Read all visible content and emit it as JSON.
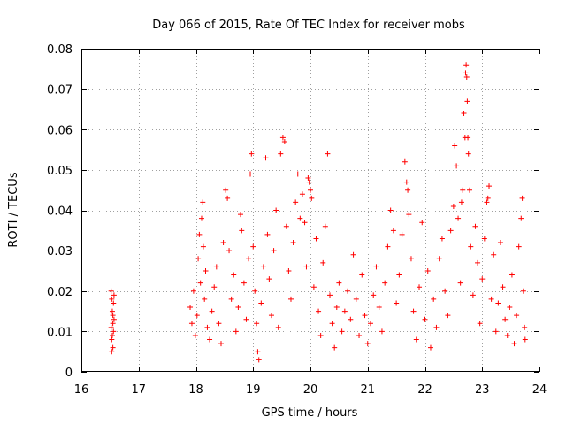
{
  "chart_data": {
    "type": "scatter",
    "title": "Day 066 of 2015, Rate Of TEC Index for receiver mobs",
    "xlabel": "GPS time / hours",
    "ylabel": "ROTI / TECUs",
    "xlim": [
      16,
      24
    ],
    "ylim": [
      0,
      0.08
    ],
    "grid": true,
    "marker": "+",
    "color": "#ff0000",
    "x_ticks": [
      16,
      17,
      18,
      19,
      20,
      21,
      22,
      23,
      24
    ],
    "x_tick_labels": [
      "16",
      "17",
      "18",
      "19",
      "20",
      "21",
      "22",
      "23",
      "24"
    ],
    "y_ticks": [
      0,
      0.01,
      0.02,
      0.03,
      0.04,
      0.05,
      0.06,
      0.07,
      0.08
    ],
    "y_tick_labels": [
      "0",
      "0.01",
      "0.02",
      "0.03",
      "0.04",
      "0.05",
      "0.06",
      "0.07",
      "0.08"
    ],
    "series": [
      {
        "name": "ROTI",
        "points": [
          [
            16.52,
            0.02
          ],
          [
            16.53,
            0.018
          ],
          [
            16.54,
            0.015
          ],
          [
            16.55,
            0.012
          ],
          [
            16.56,
            0.01
          ],
          [
            16.53,
            0.008
          ],
          [
            16.55,
            0.006
          ],
          [
            16.57,
            0.013
          ],
          [
            16.52,
            0.011
          ],
          [
            16.56,
            0.017
          ],
          [
            16.54,
            0.009
          ],
          [
            16.53,
            0.005
          ],
          [
            16.57,
            0.019
          ],
          [
            16.55,
            0.014
          ],
          [
            17.9,
            0.016
          ],
          [
            17.93,
            0.012
          ],
          [
            17.96,
            0.02
          ],
          [
            17.99,
            0.009
          ],
          [
            18.02,
            0.014
          ],
          [
            18.04,
            0.028
          ],
          [
            18.06,
            0.034
          ],
          [
            18.08,
            0.022
          ],
          [
            18.1,
            0.038
          ],
          [
            18.12,
            0.042
          ],
          [
            18.13,
            0.031
          ],
          [
            18.15,
            0.018
          ],
          [
            18.17,
            0.025
          ],
          [
            18.2,
            0.011
          ],
          [
            18.24,
            0.008
          ],
          [
            18.28,
            0.015
          ],
          [
            18.32,
            0.021
          ],
          [
            18.36,
            0.026
          ],
          [
            18.4,
            0.012
          ],
          [
            18.44,
            0.007
          ],
          [
            18.48,
            0.032
          ],
          [
            18.52,
            0.045
          ],
          [
            18.55,
            0.043
          ],
          [
            18.58,
            0.03
          ],
          [
            18.62,
            0.018
          ],
          [
            18.66,
            0.024
          ],
          [
            18.7,
            0.01
          ],
          [
            18.74,
            0.016
          ],
          [
            18.78,
            0.039
          ],
          [
            18.8,
            0.035
          ],
          [
            18.84,
            0.022
          ],
          [
            18.88,
            0.013
          ],
          [
            18.92,
            0.028
          ],
          [
            18.95,
            0.049
          ],
          [
            18.97,
            0.054
          ],
          [
            19.0,
            0.031
          ],
          [
            19.03,
            0.02
          ],
          [
            19.06,
            0.012
          ],
          [
            19.08,
            0.005
          ],
          [
            19.1,
            0.003
          ],
          [
            19.14,
            0.017
          ],
          [
            19.18,
            0.026
          ],
          [
            19.22,
            0.053
          ],
          [
            19.25,
            0.034
          ],
          [
            19.28,
            0.023
          ],
          [
            19.32,
            0.014
          ],
          [
            19.36,
            0.03
          ],
          [
            19.4,
            0.04
          ],
          [
            19.44,
            0.011
          ],
          [
            19.48,
            0.054
          ],
          [
            19.52,
            0.058
          ],
          [
            19.55,
            0.057
          ],
          [
            19.58,
            0.036
          ],
          [
            19.62,
            0.025
          ],
          [
            19.66,
            0.018
          ],
          [
            19.7,
            0.032
          ],
          [
            19.74,
            0.042
          ],
          [
            19.78,
            0.049
          ],
          [
            19.82,
            0.038
          ],
          [
            19.86,
            0.044
          ],
          [
            19.9,
            0.037
          ],
          [
            19.93,
            0.026
          ],
          [
            19.96,
            0.048
          ],
          [
            19.98,
            0.047
          ],
          [
            20.0,
            0.045
          ],
          [
            20.02,
            0.043
          ],
          [
            20.06,
            0.021
          ],
          [
            20.1,
            0.033
          ],
          [
            20.14,
            0.015
          ],
          [
            20.18,
            0.009
          ],
          [
            20.22,
            0.027
          ],
          [
            20.26,
            0.036
          ],
          [
            20.3,
            0.054
          ],
          [
            20.34,
            0.019
          ],
          [
            20.38,
            0.012
          ],
          [
            20.42,
            0.006
          ],
          [
            20.46,
            0.016
          ],
          [
            20.5,
            0.022
          ],
          [
            20.55,
            0.01
          ],
          [
            20.6,
            0.015
          ],
          [
            20.65,
            0.02
          ],
          [
            20.7,
            0.013
          ],
          [
            20.75,
            0.029
          ],
          [
            20.8,
            0.018
          ],
          [
            20.85,
            0.009
          ],
          [
            20.9,
            0.024
          ],
          [
            20.95,
            0.014
          ],
          [
            21.0,
            0.007
          ],
          [
            21.05,
            0.012
          ],
          [
            21.1,
            0.019
          ],
          [
            21.15,
            0.026
          ],
          [
            21.2,
            0.016
          ],
          [
            21.25,
            0.01
          ],
          [
            21.3,
            0.022
          ],
          [
            21.35,
            0.031
          ],
          [
            21.4,
            0.04
          ],
          [
            21.45,
            0.035
          ],
          [
            21.5,
            0.017
          ],
          [
            21.55,
            0.024
          ],
          [
            21.6,
            0.034
          ],
          [
            21.65,
            0.052
          ],
          [
            21.68,
            0.047
          ],
          [
            21.7,
            0.045
          ],
          [
            21.72,
            0.039
          ],
          [
            21.76,
            0.028
          ],
          [
            21.8,
            0.015
          ],
          [
            21.85,
            0.008
          ],
          [
            21.9,
            0.021
          ],
          [
            21.95,
            0.037
          ],
          [
            22.0,
            0.013
          ],
          [
            22.05,
            0.025
          ],
          [
            22.1,
            0.006
          ],
          [
            22.15,
            0.018
          ],
          [
            22.2,
            0.011
          ],
          [
            22.25,
            0.028
          ],
          [
            22.3,
            0.033
          ],
          [
            22.35,
            0.02
          ],
          [
            22.4,
            0.014
          ],
          [
            22.45,
            0.035
          ],
          [
            22.5,
            0.041
          ],
          [
            22.52,
            0.056
          ],
          [
            22.55,
            0.051
          ],
          [
            22.58,
            0.038
          ],
          [
            22.62,
            0.022
          ],
          [
            22.64,
            0.042
          ],
          [
            22.66,
            0.045
          ],
          [
            22.68,
            0.064
          ],
          [
            22.7,
            0.058
          ],
          [
            22.71,
            0.074
          ],
          [
            22.72,
            0.076
          ],
          [
            22.73,
            0.073
          ],
          [
            22.74,
            0.067
          ],
          [
            22.75,
            0.058
          ],
          [
            22.76,
            0.054
          ],
          [
            22.78,
            0.045
          ],
          [
            22.8,
            0.031
          ],
          [
            22.84,
            0.019
          ],
          [
            22.88,
            0.036
          ],
          [
            22.92,
            0.027
          ],
          [
            22.96,
            0.012
          ],
          [
            23.0,
            0.023
          ],
          [
            23.04,
            0.033
          ],
          [
            23.08,
            0.042
          ],
          [
            23.1,
            0.043
          ],
          [
            23.12,
            0.046
          ],
          [
            23.16,
            0.018
          ],
          [
            23.2,
            0.029
          ],
          [
            23.24,
            0.01
          ],
          [
            23.28,
            0.017
          ],
          [
            23.32,
            0.032
          ],
          [
            23.36,
            0.021
          ],
          [
            23.4,
            0.013
          ],
          [
            23.44,
            0.009
          ],
          [
            23.48,
            0.016
          ],
          [
            23.52,
            0.024
          ],
          [
            23.56,
            0.007
          ],
          [
            23.6,
            0.014
          ],
          [
            23.64,
            0.031
          ],
          [
            23.68,
            0.038
          ],
          [
            23.7,
            0.043
          ],
          [
            23.72,
            0.02
          ],
          [
            23.74,
            0.011
          ],
          [
            23.75,
            0.008
          ]
        ]
      }
    ]
  }
}
